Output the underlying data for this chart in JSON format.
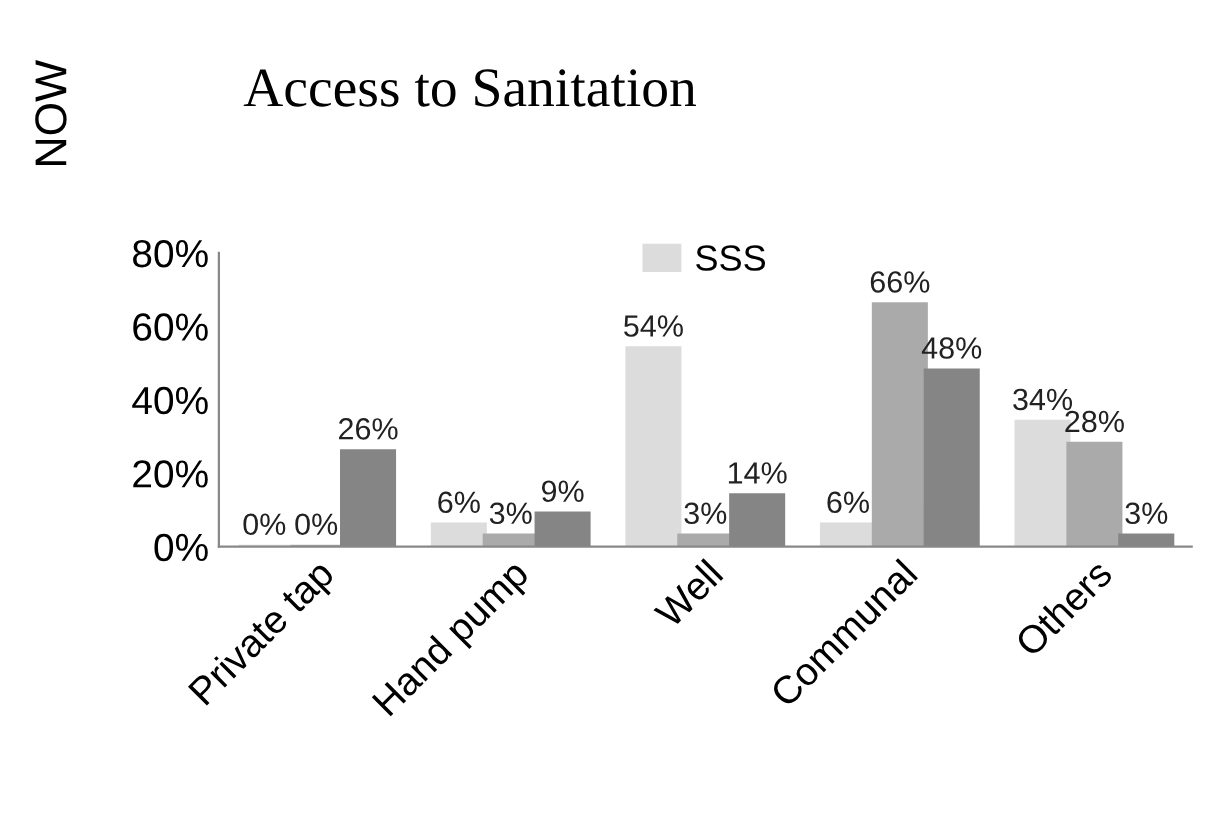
{
  "chart_data": {
    "type": "bar",
    "title": "Access to Sanitation",
    "categories": [
      "Private tap",
      "Hand pump",
      "Well",
      "Communal",
      "Others"
    ],
    "series": [
      {
        "name": "SSS",
        "color": "#dcdcdc",
        "values": [
          0,
          6,
          54,
          6,
          34
        ],
        "value_labels": [
          "0%",
          "6%",
          "54%",
          "6%",
          "34%"
        ]
      },
      {
        "color": "#aaaaaa",
        "values": [
          0,
          3,
          3,
          66,
          28
        ],
        "value_labels": [
          "0%",
          "3%",
          "3%",
          "66%",
          "28%"
        ]
      },
      {
        "color": "#858585",
        "values": [
          26,
          9,
          14,
          48,
          3
        ],
        "value_labels": [
          "26%",
          "9%",
          "14%",
          "48%",
          "3%"
        ]
      }
    ],
    "ylim": [
      0,
      80
    ],
    "yticks": [
      {
        "value": 0,
        "label": "0%"
      },
      {
        "value": 20,
        "label": "20%"
      },
      {
        "value": 40,
        "label": "40%"
      },
      {
        "value": 60,
        "label": "60%"
      },
      {
        "value": 80,
        "label": "80%"
      }
    ],
    "grid": false,
    "legend": "top",
    "annotations": [
      "NOW"
    ]
  }
}
